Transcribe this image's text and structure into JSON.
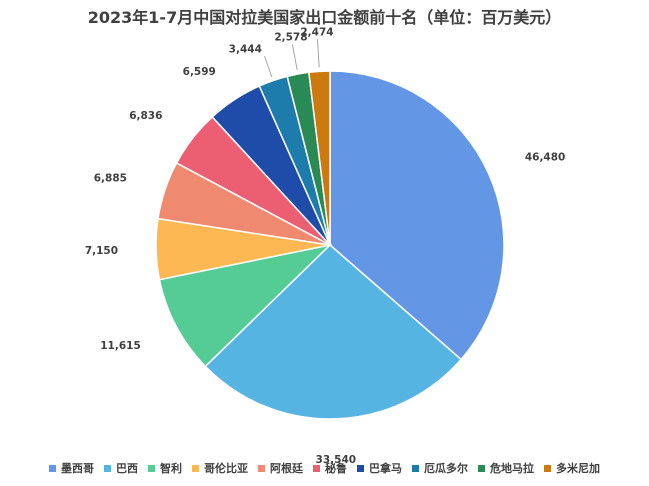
{
  "chart_data": {
    "type": "pie",
    "title": "2023年1-7月中国对拉美国家出口金额前十名（单位：百万美元）",
    "legend_position": "bottom",
    "slices": [
      {
        "label": "墨西哥",
        "value": 46480,
        "display": "46,480",
        "color": "#6496e6"
      },
      {
        "label": "巴西",
        "value": 33540,
        "display": "33,540",
        "color": "#55b4e2"
      },
      {
        "label": "智利",
        "value": 11615,
        "display": "11,615",
        "color": "#55cc96"
      },
      {
        "label": "哥伦比亚",
        "value": 7150,
        "display": "7,150",
        "color": "#fdb753"
      },
      {
        "label": "阿根廷",
        "value": 6885,
        "display": "6,885",
        "color": "#ef8a70"
      },
      {
        "label": "秘鲁",
        "value": 6836,
        "display": "6,836",
        "color": "#ec5f72"
      },
      {
        "label": "巴拿马",
        "value": 6599,
        "display": "6,599",
        "color": "#1e4ca8"
      },
      {
        "label": "厄瓜多尔",
        "value": 3444,
        "display": "3,444",
        "color": "#1e7cad"
      },
      {
        "label": "危地马拉",
        "value": 2578,
        "display": "2,578",
        "color": "#2a8a56"
      },
      {
        "label": "多米尼加",
        "value": 2474,
        "display": "2,474",
        "color": "#cc7a10"
      }
    ]
  }
}
